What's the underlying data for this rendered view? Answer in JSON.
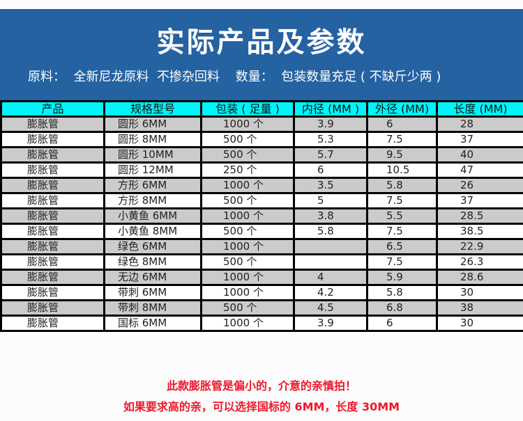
{
  "banner": {
    "title": "实际产品及参数",
    "subtitle": "原料：  全新尼龙原料  不掺杂回料    数量：  包装数量充足 ( 不缺斤少两 )",
    "background_color": "#2462a2"
  },
  "table": {
    "header_color": "#00f5f8",
    "columns": [
      "产品",
      "规格型号",
      "包装 ( 足量 )",
      "内径 (MM )",
      "外径 (MM)",
      "长度 (MM)"
    ],
    "rows": [
      [
        "膨胀管",
        "圆形 6MM",
        "1000 个",
        "3.9",
        "6",
        "28"
      ],
      [
        "膨胀管",
        "圆形 8MM",
        "500 个",
        "5.3",
        "7.5",
        "37"
      ],
      [
        "膨胀管",
        "圆形 10MM",
        "500 个",
        "5.7",
        "9.5",
        "40"
      ],
      [
        "膨胀管",
        "圆形 12MM",
        "250 个",
        "6",
        "10.5",
        "47"
      ],
      [
        "膨胀管",
        "方形 6MM",
        "1000 个",
        "3.5",
        "5.8",
        "26"
      ],
      [
        "膨胀管",
        "方形 8MM",
        "500 个",
        "5",
        "7.5",
        "37"
      ],
      [
        "膨胀管",
        "小黄鱼 6MM",
        "1000 个",
        "3.8",
        "5.5",
        "28.5"
      ],
      [
        "膨胀管",
        "小黄鱼 8MM",
        "500 个",
        "5.8",
        "7.5",
        "38.5"
      ],
      [
        "膨胀管",
        "绿色 6MM",
        "1000 个",
        "",
        "6.5",
        "22.9"
      ],
      [
        "膨胀管",
        "绿色 8MM",
        "500 个",
        "",
        "7.5",
        "26.3"
      ],
      [
        "膨胀管",
        "无边 6MM",
        "1000 个",
        "4",
        "5.9",
        "28.6"
      ],
      [
        "膨胀管",
        "带刺 6MM",
        "1000 个",
        "4.2",
        "5.8",
        "30"
      ],
      [
        "膨胀管",
        "带刺 8MM",
        "500 个",
        "4.5",
        "6.8",
        "38"
      ],
      [
        "膨胀管",
        "国标 6MM",
        "1000 个",
        "3.9",
        "6",
        "30"
      ]
    ]
  },
  "notes": {
    "line1": "此款膨胀管是偏小的，介意的亲慎拍！",
    "line2": "如果要求高的亲，可以选择国标的 6MM，长度 30MM",
    "color": "#f0182a"
  }
}
